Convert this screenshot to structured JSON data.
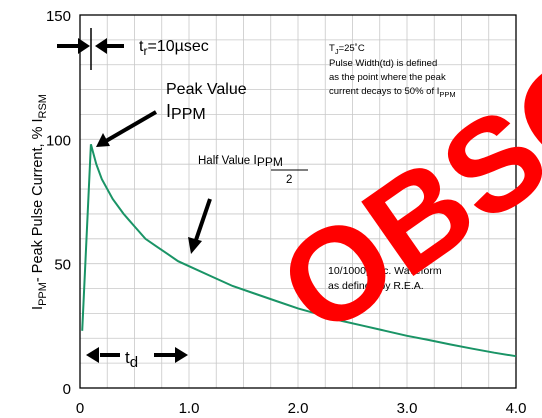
{
  "chart_data": {
    "type": "line",
    "xlim": [
      0,
      4.0
    ],
    "ylim": [
      0,
      150
    ],
    "x_ticks": [
      "0",
      "1.0",
      "2.0",
      "3.0",
      "4.0"
    ],
    "y_ticks": [
      "0",
      "50",
      "100",
      "150"
    ],
    "grid": true,
    "y_axis_label": {
      "main": "I",
      "sub1": "PPM",
      "rest": "- Peak Pulse Current, % I",
      "sub2": "RSM"
    },
    "series": [
      {
        "color": "#1a9466",
        "x": [
          0.02,
          0.1,
          0.15,
          0.2,
          0.3,
          0.4,
          0.5,
          0.6,
          0.7,
          0.8,
          0.9,
          1.0,
          1.2,
          1.4,
          1.6,
          1.8,
          2.0,
          2.2,
          2.4,
          2.6,
          2.8,
          3.0,
          3.2,
          3.4,
          3.6,
          3.8,
          4.0
        ],
        "y": [
          23,
          98,
          90,
          84,
          76,
          70,
          65,
          60,
          57,
          54,
          51,
          49,
          45,
          41,
          38,
          35,
          32,
          29.5,
          27,
          25,
          23,
          21,
          19.3,
          17.5,
          15.8,
          14.2,
          12.8
        ]
      }
    ],
    "annotations": {
      "tr": {
        "main": "t",
        "sub": "r",
        "rest": "=10µsec"
      },
      "peak": {
        "line1": "Peak Value",
        "main": "I",
        "sub": "PPM"
      },
      "half": {
        "prefix": "Half Value ",
        "num_main": "I",
        "num_sub": "PPM",
        "den": "2"
      },
      "note": {
        "tj_main": "T",
        "tj_sub": "J",
        "tj_rest": "=25˚C",
        "line2": "Pulse Width(td) is defined",
        "line3": "as the point where the peak",
        "line4_pre": "current decays to 50% of I",
        "line4_sub": "PPM"
      },
      "waveform": {
        "line1": "10/1000µsec. Waveform",
        "line2": "as defined by R.E.A."
      },
      "td": {
        "main": "t",
        "sub": "d"
      }
    },
    "stamp": {
      "text": "OBSOLETE",
      "color": "#ff0000"
    }
  }
}
